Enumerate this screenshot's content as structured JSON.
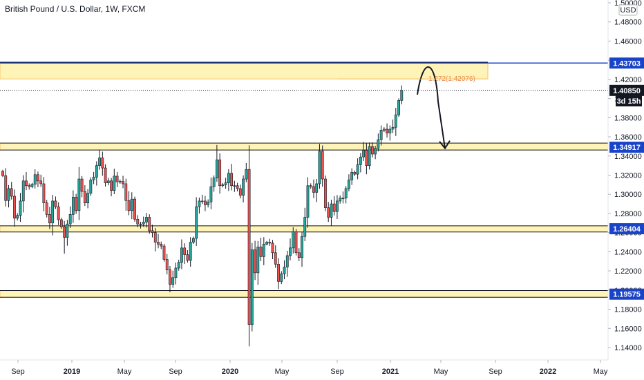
{
  "chart_data": {
    "type": "candlestick",
    "title": "British Pound / U.S. Dollar, 1W, FXCM",
    "currency_label": "USD",
    "timeframe_countdown": "3d 15h",
    "ylim": [
      1.13,
      1.505
    ],
    "y_ticks": [
      "1.50000",
      "1.48000",
      "1.46000",
      "1.44000",
      "1.42000",
      "1.40000",
      "1.38000",
      "1.36000",
      "1.34000",
      "1.32000",
      "1.30000",
      "1.28000",
      "1.26000",
      "1.24000",
      "1.22000",
      "1.20000",
      "1.18000",
      "1.16000",
      "1.14000"
    ],
    "x_ticks": [
      "Sep",
      "2019",
      "May",
      "Sep",
      "2020",
      "May",
      "Sep",
      "2021",
      "May",
      "Sep",
      "2022",
      "May"
    ],
    "price_tags": [
      {
        "value": "1.43703",
        "color": "#1a44c8"
      },
      {
        "value": "1.40850",
        "color": "#131722"
      },
      {
        "value": "1.34917",
        "color": "#1a44c8"
      },
      {
        "value": "1.26404",
        "color": "#1a44c8"
      },
      {
        "value": "1.19575",
        "color": "#1a44c8"
      }
    ],
    "zones": [
      {
        "top": 1.43703,
        "bottom": 1.4205,
        "end": "2021-09-01"
      },
      {
        "top": 1.3535,
        "bottom": 1.3462,
        "end": "extend"
      },
      {
        "top": 1.2671,
        "bottom": 1.2607,
        "end": "extend"
      },
      {
        "top": 1.1995,
        "bottom": 1.1925,
        "end": "extend"
      }
    ],
    "horizontal_lines": [
      {
        "value": 1.43703,
        "style": "solid",
        "color": "#1a44c8"
      },
      {
        "value": 1.4085,
        "style": "dotted",
        "color": "#131722"
      }
    ],
    "fib_label": {
      "text": "1.272(1.42076)",
      "value": 1.4208,
      "color": "#e8844a"
    },
    "forecast_arrow": {
      "from": 1.404,
      "peak": 1.422,
      "to": 1.348
    },
    "up_color": "#26a69a",
    "down_color": "#ef5350",
    "candles_close": [
      1.3195,
      1.2935,
      1.306,
      1.298,
      1.275,
      1.278,
      1.293,
      1.314,
      1.309,
      1.308,
      1.3105,
      1.3205,
      1.314,
      1.311,
      1.291,
      1.279,
      1.27,
      1.293,
      1.287,
      1.2735,
      1.266,
      1.255,
      1.269,
      1.279,
      1.297,
      1.283,
      1.316,
      1.303,
      1.291,
      1.301,
      1.315,
      1.318,
      1.33,
      1.338,
      1.3275,
      1.312,
      1.314,
      1.304,
      1.319,
      1.313,
      1.3135,
      1.311,
      1.2935,
      1.283,
      1.295,
      1.274,
      1.269,
      1.269,
      1.271,
      1.276,
      1.262,
      1.26,
      1.25,
      1.248,
      1.246,
      1.232,
      1.221,
      1.206,
      1.213,
      1.223,
      1.229,
      1.244,
      1.237,
      1.231,
      1.25,
      1.254,
      1.287,
      1.293,
      1.293,
      1.289,
      1.292,
      1.308,
      1.317,
      1.336,
      1.309,
      1.31,
      1.312,
      1.322,
      1.309,
      1.309,
      1.306,
      1.299,
      1.316,
      1.326,
      1.164,
      1.242,
      1.218,
      1.245,
      1.235,
      1.248,
      1.25,
      1.249,
      1.239,
      1.227,
      1.209,
      1.217,
      1.224,
      1.236,
      1.244,
      1.261,
      1.239,
      1.234,
      1.256,
      1.276,
      1.309,
      1.308,
      1.302,
      1.311,
      1.345,
      1.316,
      1.286,
      1.276,
      1.29,
      1.282,
      1.293,
      1.296,
      1.296,
      1.306,
      1.315,
      1.323,
      1.321,
      1.331,
      1.339,
      1.346,
      1.33,
      1.35,
      1.342,
      1.348,
      1.357,
      1.367,
      1.368,
      1.364,
      1.368,
      1.37,
      1.383,
      1.398,
      1.4085
    ]
  }
}
